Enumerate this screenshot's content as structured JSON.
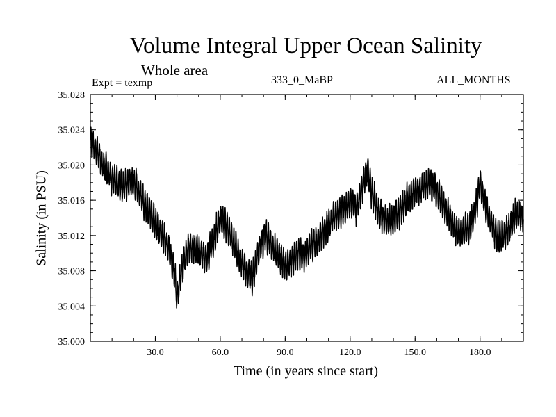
{
  "chart_data": {
    "type": "line",
    "title": "Volume Integral Upper Ocean Salinity",
    "subtitle": "Whole area",
    "expt_label": "Expt = texmp",
    "run_label": "333_0_MaBP",
    "months_label": "ALL_MONTHS",
    "xlabel": "Time (in years since start)",
    "ylabel": "Salinity (in PSU)",
    "xlim": [
      0,
      200
    ],
    "ylim": [
      35.0,
      35.028
    ],
    "x_ticks": [
      30,
      60,
      90,
      120,
      150,
      180
    ],
    "x_tick_labels": [
      "30.0",
      "60.0",
      "90.0",
      "120.0",
      "150.0",
      "180.0"
    ],
    "y_ticks": [
      35.0,
      35.004,
      35.008,
      35.012,
      35.016,
      35.02,
      35.024,
      35.028
    ],
    "y_tick_labels": [
      "35.000",
      "35.004",
      "35.008",
      "35.012",
      "35.016",
      "35.020",
      "35.024",
      "35.028"
    ],
    "series": [
      {
        "name": "Salinity",
        "x": [
          0,
          3,
          6,
          9,
          12,
          15,
          18,
          21,
          24,
          27,
          30,
          33,
          36,
          39,
          40,
          42,
          45,
          48,
          51,
          54,
          57,
          60,
          63,
          66,
          69,
          72,
          75,
          78,
          81,
          84,
          87,
          90,
          93,
          96,
          99,
          102,
          105,
          108,
          111,
          114,
          117,
          120,
          123,
          126,
          128,
          130,
          133,
          136,
          139,
          142,
          145,
          148,
          151,
          154,
          157,
          160,
          163,
          166,
          169,
          172,
          175,
          178,
          180,
          182,
          185,
          188,
          191,
          194,
          197,
          200
        ],
        "values": [
          35.0228,
          35.0215,
          35.02,
          35.0188,
          35.018,
          35.0175,
          35.0182,
          35.0178,
          35.016,
          35.0148,
          35.0135,
          35.012,
          35.0108,
          35.0075,
          35.005,
          35.008,
          35.0105,
          35.0108,
          35.01,
          35.0095,
          35.0115,
          35.0138,
          35.013,
          35.0112,
          35.0095,
          35.008,
          35.0072,
          35.0105,
          35.0122,
          35.0105,
          35.0098,
          35.0085,
          35.009,
          35.01,
          35.0098,
          35.0108,
          35.0115,
          35.0125,
          35.0135,
          35.0145,
          35.015,
          35.0158,
          35.015,
          35.018,
          35.0195,
          35.0168,
          35.0148,
          35.0138,
          35.0135,
          35.0145,
          35.0155,
          35.0165,
          35.0172,
          35.0175,
          35.018,
          35.017,
          35.0155,
          35.014,
          35.0125,
          35.0125,
          35.0128,
          35.015,
          35.018,
          35.0158,
          35.0135,
          35.0118,
          35.012,
          35.013,
          35.0145,
          35.014
        ]
      }
    ]
  }
}
